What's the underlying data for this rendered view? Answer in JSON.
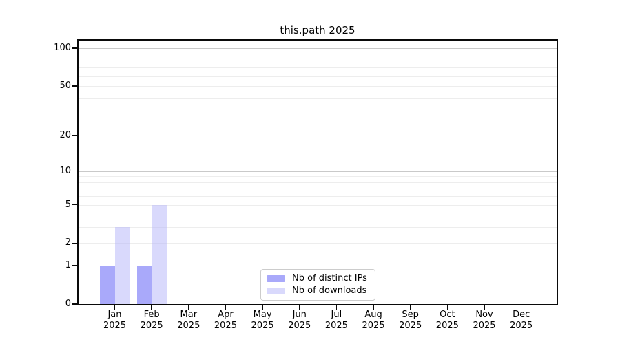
{
  "chart_data": {
    "type": "bar",
    "title": "this.path 2025",
    "x_month_labels": [
      "Jan",
      "Feb",
      "Mar",
      "Apr",
      "May",
      "Jun",
      "Jul",
      "Aug",
      "Sep",
      "Oct",
      "Nov",
      "Dec"
    ],
    "x_year_label": "2025",
    "series": [
      {
        "name": "Nb of distinct IPs",
        "color": "#a9a9fa",
        "opacity": 1,
        "values": [
          1,
          1,
          0,
          0,
          0,
          0,
          0,
          0,
          0,
          0,
          0,
          0
        ]
      },
      {
        "name": "Nb of downloads",
        "color": "#b4b4fa",
        "opacity": 0.5,
        "effective_color": "#dcdcf8",
        "values": [
          3,
          5,
          0,
          0,
          0,
          0,
          0,
          0,
          0,
          0,
          0,
          0
        ]
      }
    ],
    "yscale": "log1p",
    "ylim": [
      0,
      116
    ],
    "ytick_labels": [
      0,
      1,
      2,
      5,
      10,
      20,
      50,
      100
    ],
    "major_gridlines": [
      1,
      10,
      100
    ],
    "minor_gridlines": [
      2,
      3,
      4,
      5,
      6,
      7,
      8,
      9,
      20,
      30,
      40,
      50,
      60,
      70,
      80,
      90
    ],
    "legend": {
      "position": "lower center",
      "entries": [
        "Nb of distinct IPs",
        "Nb of downloads"
      ]
    },
    "colors": {
      "major_grid": "#c9c9c9",
      "minor_grid": "#ededed",
      "spine": "#0a0a0a",
      "text": "#000000",
      "legend_border": "#cccccc",
      "background": "#ffffff"
    }
  }
}
